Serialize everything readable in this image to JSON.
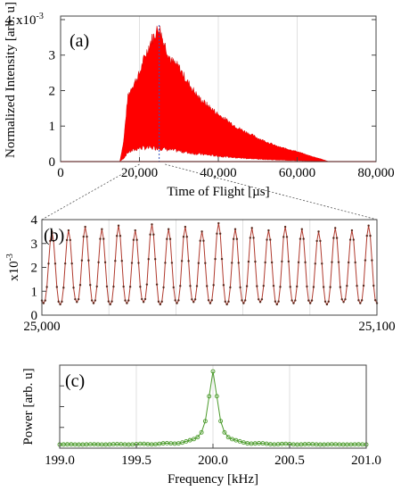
{
  "chart_data": [
    {
      "panel": "(a)",
      "type": "area",
      "xlabel": "Time of Flight [µs]",
      "ylabel": "Normalized Intensity [arb. u]",
      "y_multiplier": "x10",
      "y_exponent": "-3",
      "xlim": [
        0,
        80000
      ],
      "ylim": [
        0,
        4.1
      ],
      "x_ticks": [
        0,
        20000,
        40000,
        60000,
        80000
      ],
      "x_tick_labels": [
        "0",
        "20,000",
        "40,000",
        "60,000",
        "80,000"
      ],
      "y_ticks": [
        0,
        1,
        2,
        3,
        4
      ],
      "y_tick_labels": [
        "0",
        "1",
        "2",
        "3",
        "4"
      ],
      "marker_x": 25000,
      "envelope": {
        "x": [
          15000,
          16000,
          17000,
          18000,
          19000,
          20000,
          21000,
          22000,
          23000,
          24000,
          25000,
          26000,
          27000,
          28000,
          30000,
          32000,
          35000,
          40000,
          45000,
          50000,
          55000,
          60000,
          63000,
          66000,
          67000,
          68000
        ],
        "upper": [
          0,
          0.6,
          1.9,
          2.2,
          2.4,
          2.6,
          3.0,
          3.3,
          3.6,
          3.8,
          4.0,
          3.6,
          3.3,
          3.0,
          2.8,
          2.4,
          1.9,
          1.4,
          1.0,
          0.7,
          0.45,
          0.3,
          0.18,
          0.08,
          0.04,
          0
        ],
        "lower": [
          0,
          0.1,
          0.3,
          0.35,
          0.4,
          0.45,
          0.45,
          0.45,
          0.45,
          0.45,
          0.45,
          0.42,
          0.4,
          0.38,
          0.35,
          0.3,
          0.25,
          0.18,
          0.12,
          0.08,
          0.05,
          0.03,
          0.02,
          0.01,
          0,
          0
        ]
      },
      "color": "#ff0000"
    },
    {
      "panel": "(b)",
      "type": "line",
      "ylabel_multiplier": "x10",
      "ylabel_exponent": "-3",
      "xlim": [
        25000,
        25100
      ],
      "ylim": [
        0,
        4
      ],
      "x_tick_labels": [
        "25,000",
        "25,100"
      ],
      "y_ticks": [
        0,
        1,
        2,
        3,
        4
      ],
      "y_tick_labels": [
        "0",
        "1",
        "2",
        "3",
        "4"
      ],
      "cycles": 20,
      "peaks": [
        3.5,
        3.55,
        3.7,
        3.6,
        3.75,
        3.55,
        3.8,
        3.6,
        3.7,
        3.5,
        3.85,
        3.6,
        3.65,
        3.55,
        3.7,
        3.6,
        3.5,
        3.65,
        3.55,
        3.75,
        3.9
      ],
      "troughs": [
        0.5,
        0.45,
        0.55,
        0.5,
        0.45,
        0.5,
        0.55,
        0.45,
        0.5,
        0.55,
        0.5,
        0.45,
        0.5,
        0.55,
        0.45,
        0.5,
        0.5,
        0.45,
        0.55,
        0.5
      ],
      "color": "#b03a2e"
    },
    {
      "panel": "(c)",
      "type": "line",
      "xlabel": "Frequency [kHz]",
      "ylabel": "Power [arb. u]",
      "xlim": [
        199.0,
        201.0
      ],
      "x_ticks": [
        199.0,
        199.5,
        200.0,
        200.5,
        201.0
      ],
      "x_tick_labels": [
        "199.0",
        "199.5",
        "200.0",
        "200.5",
        "201.0"
      ],
      "peak_frequency": 200.0,
      "peak_power": 1.0,
      "baseline": 0.0,
      "point_step": 0.025,
      "color": "#4a9a2a"
    }
  ]
}
